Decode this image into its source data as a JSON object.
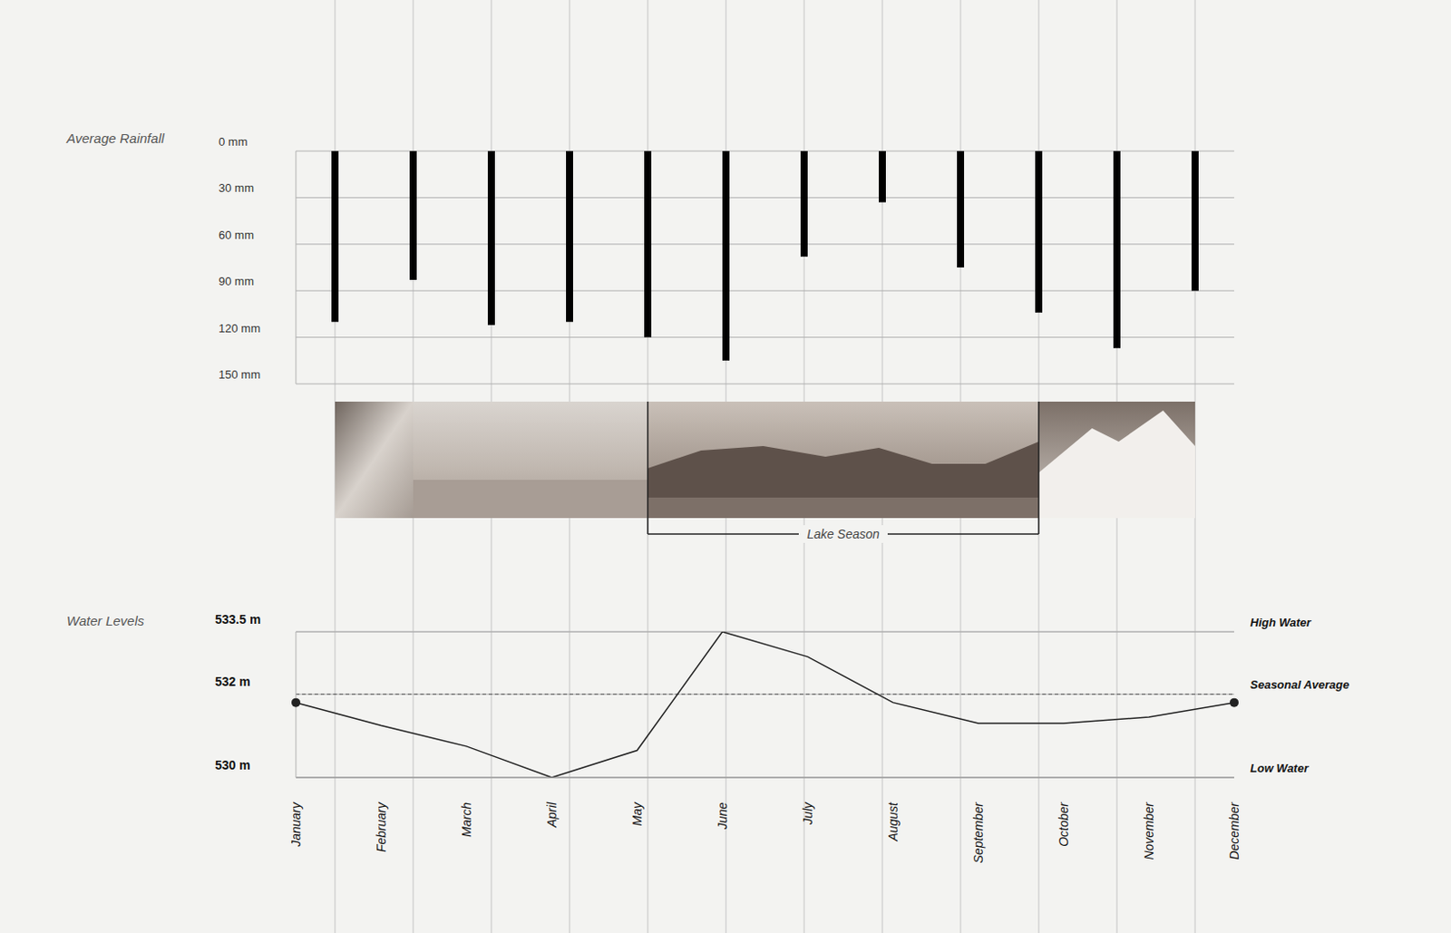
{
  "chart_data": [
    {
      "type": "bar",
      "title": "Average Rainfall",
      "categories": [
        "January",
        "February",
        "March",
        "April",
        "May",
        "June",
        "July",
        "August",
        "September",
        "October",
        "November",
        "December"
      ],
      "values": [
        110,
        83,
        112,
        110,
        120,
        135,
        68,
        33,
        75,
        104,
        127,
        90
      ],
      "color": "#000000",
      "ylim": [
        0,
        150
      ],
      "yticks": [
        {
          "value": 0,
          "label": "0 mm"
        },
        {
          "value": 30,
          "label": "30 mm"
        },
        {
          "value": 60,
          "label": "60 mm"
        },
        {
          "value": 90,
          "label": "90 mm"
        },
        {
          "value": 120,
          "label": "120 mm"
        },
        {
          "value": 150,
          "label": "150 mm"
        }
      ],
      "grid": true,
      "tick_labels": "y",
      "annotations": [
        {
          "text": "Lake Season",
          "from": "May",
          "to": "October"
        }
      ]
    },
    {
      "type": "line",
      "title": "Water Levels",
      "categories": [
        "January",
        "February",
        "March",
        "April",
        "May",
        "June",
        "July",
        "August",
        "September",
        "October",
        "November",
        "December"
      ],
      "values": [
        531.8,
        531.25,
        530.75,
        530,
        530.65,
        533.5,
        532.9,
        531.8,
        531.3,
        531.3,
        531.45,
        531.8
      ],
      "color": "#222222",
      "ylim": [
        530,
        533.5
      ],
      "yticks": [
        {
          "value": 530,
          "label": "530 m"
        },
        {
          "value": 532,
          "label": "532 m"
        },
        {
          "value": 533.5,
          "label": "533.5 m"
        }
      ],
      "grid": true,
      "annotations": [
        {
          "text": "High Water",
          "y": 533.5
        },
        {
          "text": "Seasonal Average",
          "y": 532,
          "line_style": "dashed"
        },
        {
          "text": "Low Water",
          "y": 530
        }
      ]
    }
  ]
}
